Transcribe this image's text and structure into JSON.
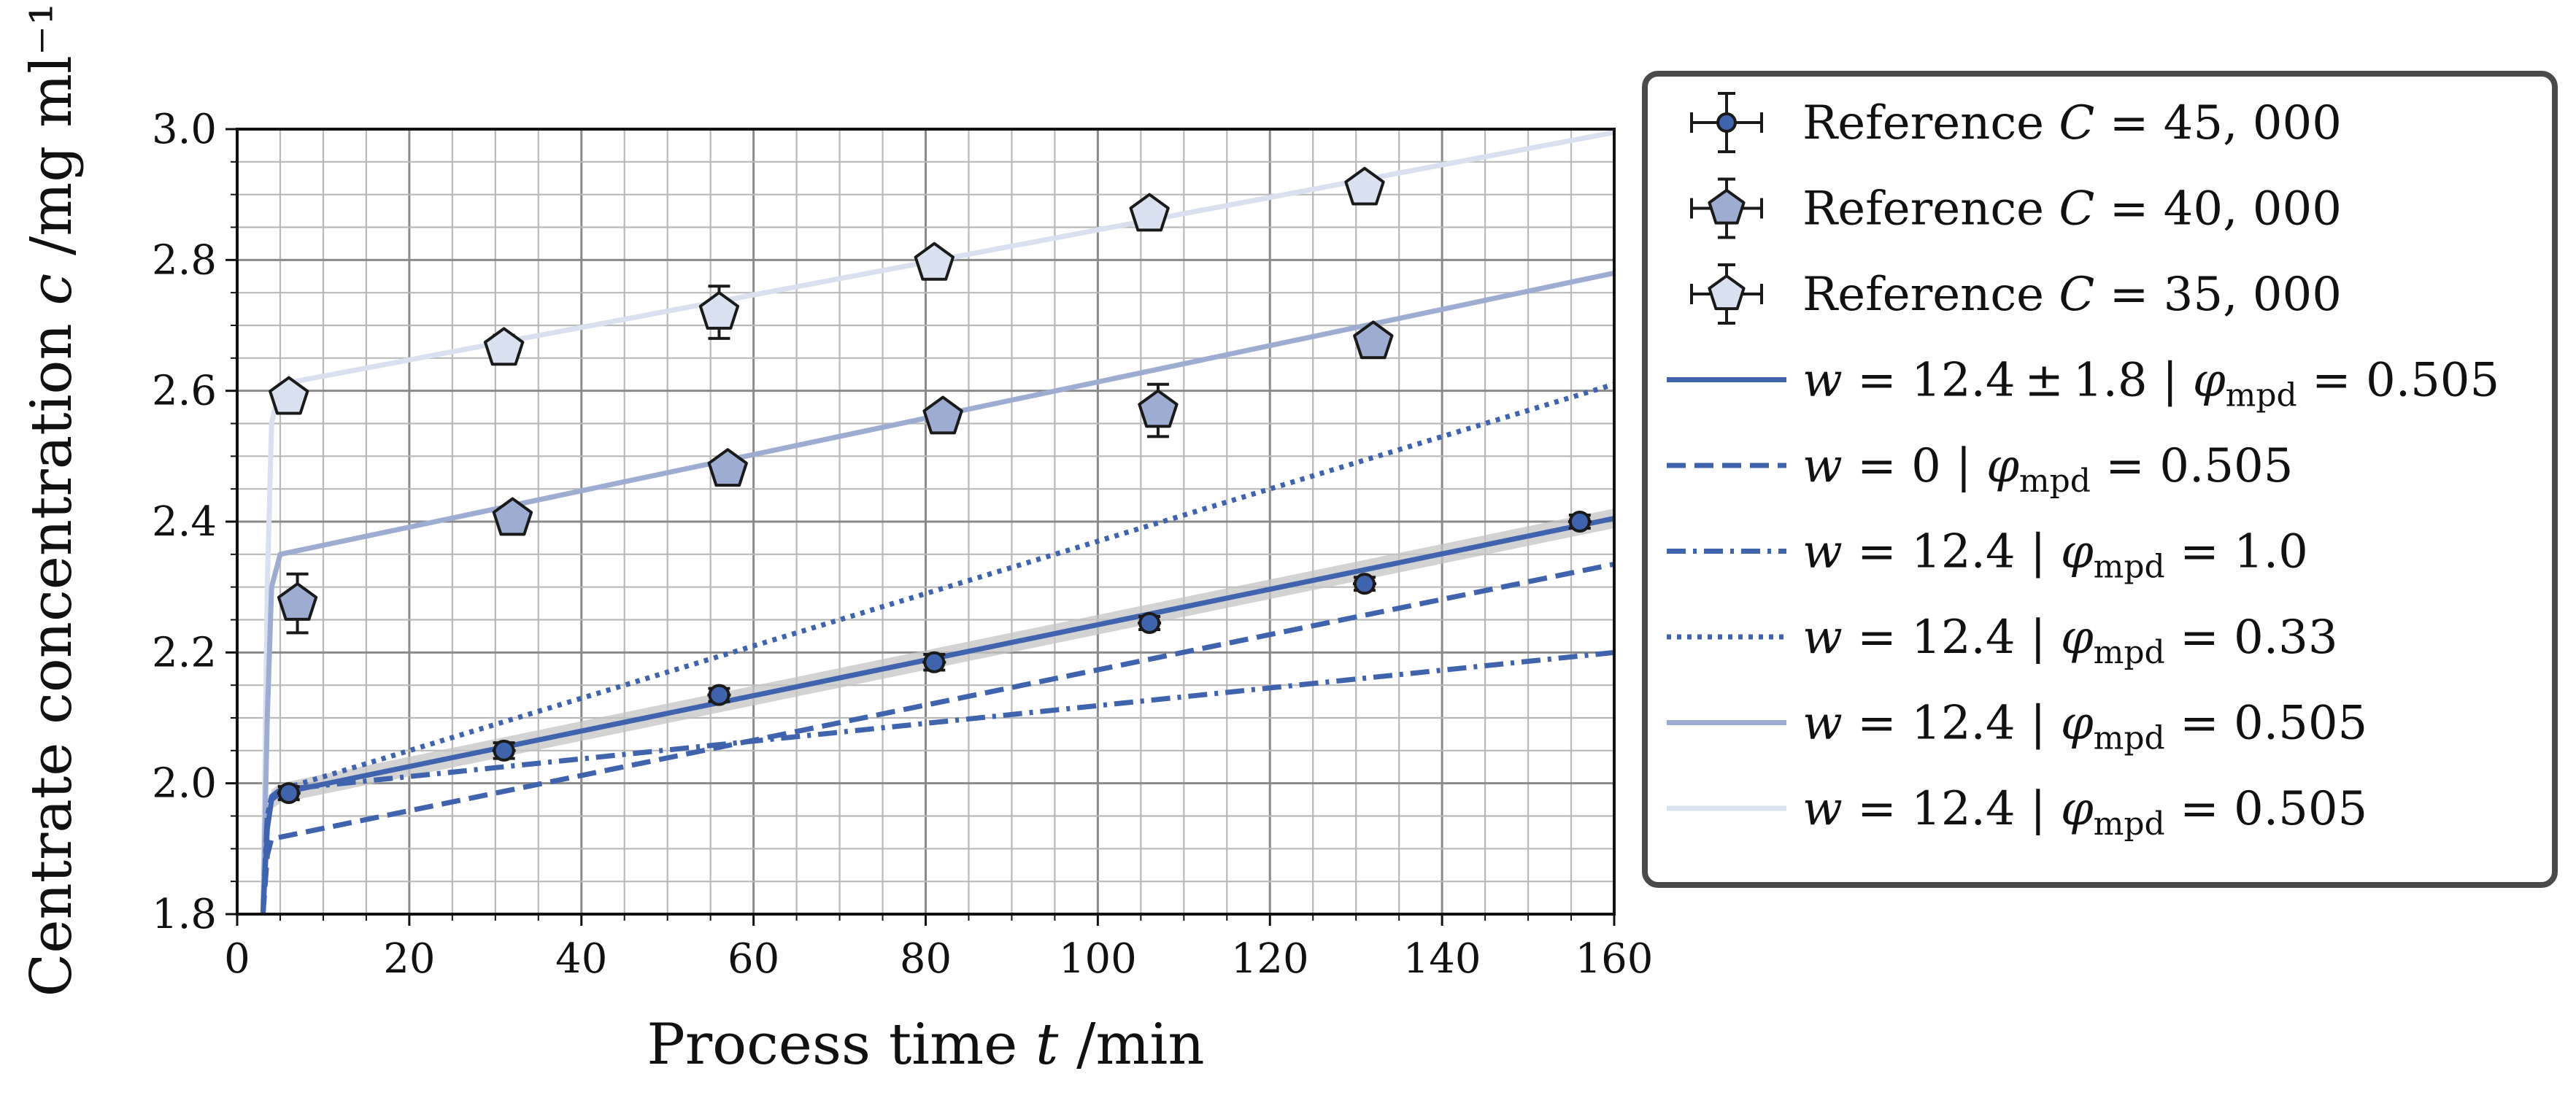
{
  "chart_data": {
    "type": "line",
    "xlabel": "Process time t /min",
    "ylabel": "Centrate concentration c /mg ml⁻¹",
    "xlim": [
      0,
      160
    ],
    "ylim": [
      1.8,
      3.0
    ],
    "xticks": [
      0,
      20,
      40,
      60,
      80,
      100,
      120,
      140,
      160
    ],
    "yticks": [
      1.8,
      2.0,
      2.2,
      2.4,
      2.6,
      2.8,
      3.0
    ],
    "ytick_labels": [
      "1.8",
      "2.0",
      "2.2",
      "2.4",
      "2.6",
      "2.8",
      "3.0"
    ],
    "grid": true,
    "legend_position": "outside-right",
    "colors": {
      "dark_blue": "#4063ad",
      "mid_blue": "#9dadd1",
      "light_blue": "#d9e0ef",
      "band": "#c4c4c4",
      "marker_edge": "#1a1a1a"
    },
    "scatter_series": [
      {
        "name": "Reference C = 45,000",
        "marker": "circle",
        "color": "#4063ad",
        "x": [
          6,
          31,
          56,
          81,
          106,
          131,
          156
        ],
        "y": [
          1.985,
          2.05,
          2.135,
          2.185,
          2.245,
          2.305,
          2.4
        ],
        "yerr": [
          0.01,
          0.012,
          0.01,
          0.012,
          0.01,
          0.01,
          0.01
        ]
      },
      {
        "name": "Reference C = 40,000",
        "marker": "pentagon",
        "color": "#9dadd1",
        "x": [
          7,
          32,
          57,
          82,
          107,
          132
        ],
        "y": [
          2.275,
          2.405,
          2.48,
          2.56,
          2.57,
          2.675
        ],
        "yerr": [
          0.045,
          0.012,
          0.012,
          0.012,
          0.04,
          0.01
        ]
      },
      {
        "name": "Reference C = 35,000",
        "marker": "pentagon",
        "color": "#d9e0ef",
        "x": [
          6,
          31,
          56,
          81,
          106,
          131
        ],
        "y": [
          2.59,
          2.665,
          2.72,
          2.795,
          2.87,
          2.91
        ],
        "yerr": [
          0.01,
          0.02,
          0.04,
          0.01,
          0.01,
          0.01
        ]
      }
    ],
    "line_series": [
      {
        "name": "w = 12.4 ± 1.8 | φmpd = 0.505",
        "style": "solid",
        "color": "#4063ad",
        "x": [
          3,
          3.5,
          4,
          5,
          160
        ],
        "y": [
          1.8,
          1.93,
          1.975,
          1.985,
          2.405
        ],
        "band": 0.015
      },
      {
        "name": "w = 0 | φmpd = 0.505",
        "style": "dashed",
        "color": "#4063ad",
        "x": [
          3,
          3.5,
          4,
          160
        ],
        "y": [
          1.8,
          1.89,
          1.915,
          2.335
        ]
      },
      {
        "name": "w = 12.4 | φmpd = 1.0",
        "style": "dashdot",
        "color": "#4063ad",
        "x": [
          3,
          3.5,
          4,
          5,
          160
        ],
        "y": [
          1.8,
          1.95,
          1.98,
          1.99,
          2.2
        ]
      },
      {
        "name": "w = 12.4 | φmpd = 0.33",
        "style": "dotted",
        "color": "#4063ad",
        "x": [
          3,
          3.5,
          4,
          5,
          160
        ],
        "y": [
          1.8,
          1.95,
          1.98,
          1.99,
          2.61
        ]
      },
      {
        "name": "w = 12.4 | φmpd = 0.505",
        "style": "solid",
        "color": "#9dadd1",
        "x": [
          3,
          3.5,
          4,
          5,
          160
        ],
        "y": [
          1.8,
          2.1,
          2.3,
          2.35,
          2.78
        ]
      },
      {
        "name": "w = 12.4 | φmpd = 0.505",
        "style": "solid",
        "color": "#d9e0ef",
        "x": [
          3,
          3.5,
          4,
          5,
          160
        ],
        "y": [
          1.8,
          2.3,
          2.55,
          2.61,
          2.995
        ]
      }
    ],
    "legend": [
      {
        "kind": "scatter",
        "series": 0,
        "prefix": "Reference ",
        "var": "C",
        "rest": " = 45, 000"
      },
      {
        "kind": "scatter",
        "series": 1,
        "prefix": "Reference ",
        "var": "C",
        "rest": " = 40, 000"
      },
      {
        "kind": "scatter",
        "series": 2,
        "prefix": "Reference ",
        "var": "C",
        "rest": " = 35, 000"
      },
      {
        "kind": "line",
        "series": 0,
        "w": "12.4 ± 1.8",
        "phi": "0.505"
      },
      {
        "kind": "line",
        "series": 1,
        "w": "0",
        "phi": "0.505"
      },
      {
        "kind": "line",
        "series": 2,
        "w": "12.4",
        "phi": "1.0"
      },
      {
        "kind": "line",
        "series": 3,
        "w": "12.4",
        "phi": "0.33"
      },
      {
        "kind": "line",
        "series": 4,
        "w": "12.4",
        "phi": "0.505"
      },
      {
        "kind": "line",
        "series": 5,
        "w": "12.4",
        "phi": "0.505"
      }
    ]
  }
}
